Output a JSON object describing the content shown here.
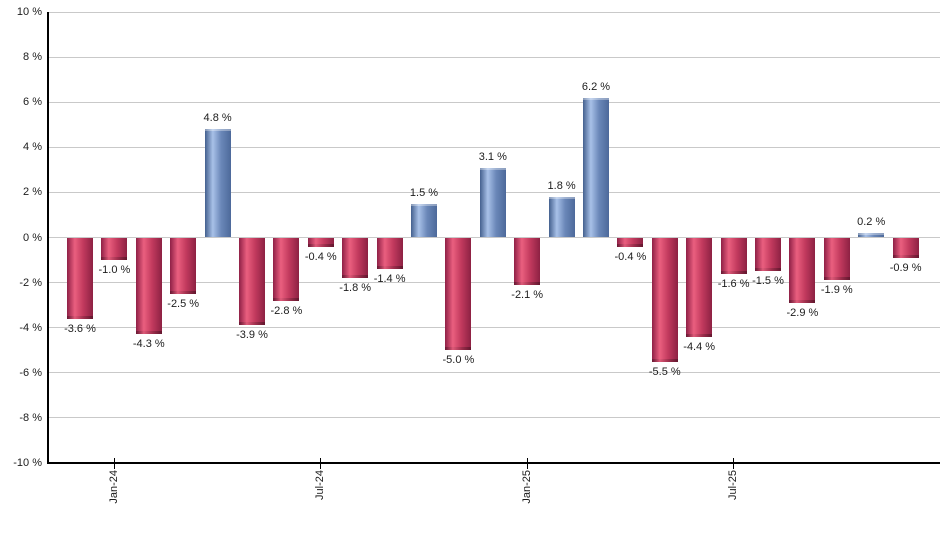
{
  "chart_data": {
    "type": "bar",
    "title": "",
    "unit": "%",
    "values": [
      -3.6,
      -1.0,
      -4.3,
      -2.5,
      4.8,
      -3.9,
      -2.8,
      -0.4,
      -1.8,
      -1.4,
      1.5,
      -5.0,
      3.1,
      -2.1,
      1.8,
      6.2,
      -0.4,
      -5.5,
      -4.4,
      -1.6,
      -1.5,
      -2.9,
      -1.9,
      0.2,
      -0.9
    ],
    "bar_labels": [
      "-3.6 %",
      "-1.0 %",
      "-4.3 %",
      "-2.5 %",
      "4.8 %",
      "-3.9 %",
      "-2.8 %",
      "-0.4 %",
      "-1.8 %",
      "-1.4 %",
      "1.5 %",
      "-5.0 %",
      "3.1 %",
      "-2.1 %",
      "1.8 %",
      "6.2 %",
      "-0.4 %",
      "-5.5 %",
      "-4.4 %",
      "-1.6 %",
      "-1.5 %",
      "-2.9 %",
      "-1.9 %",
      "0.2 %",
      "-0.9 %"
    ],
    "x_ticks": [
      {
        "index": 1,
        "label": "Jan-24"
      },
      {
        "index": 7,
        "label": "Jul-24"
      },
      {
        "index": 13,
        "label": "Jan-25"
      },
      {
        "index": 19,
        "label": "Jul-25"
      }
    ],
    "y_ticks": [
      {
        "value": 10,
        "label": "10 %"
      },
      {
        "value": 8,
        "label": "8 %"
      },
      {
        "value": 6,
        "label": "6 %"
      },
      {
        "value": 4,
        "label": "4 %"
      },
      {
        "value": 2,
        "label": "2 %"
      },
      {
        "value": 0,
        "label": "0 %"
      },
      {
        "value": -2,
        "label": "-2 %"
      },
      {
        "value": -4,
        "label": "-4 %"
      },
      {
        "value": -6,
        "label": "-6 %"
      },
      {
        "value": -8,
        "label": "-8 %"
      },
      {
        "value": -10,
        "label": "-10 %"
      }
    ],
    "ylim": [
      -10,
      10
    ],
    "grid": true,
    "legend": false,
    "colors": {
      "positive_bar_gradient": [
        "#44608e",
        "#a8c1e8",
        "#6a87b8",
        "#4d699a"
      ],
      "negative_bar_gradient": [
        "#8f2046",
        "#ea5f7f",
        "#c23a5e",
        "#8d2143"
      ],
      "gridline": "#c9c9c9",
      "axis": "#000000",
      "text": "#1c1c1c",
      "background": "#ffffff"
    }
  }
}
